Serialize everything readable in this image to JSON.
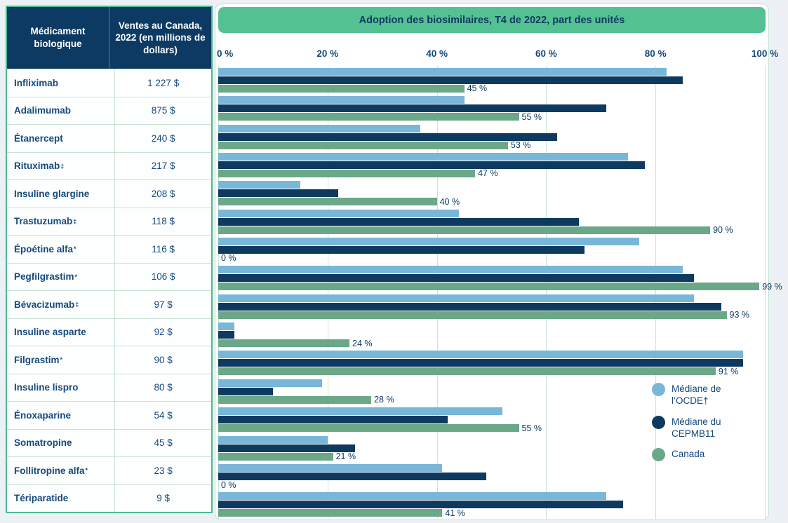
{
  "table": {
    "header": {
      "drug_col": "Médicament biologique",
      "sales_col": "Ventes au Canada, 2022 (en millions de dollars)"
    },
    "rows": [
      {
        "drug": "Infliximab",
        "marker": "",
        "sales": "1 227 $"
      },
      {
        "drug": "Adalimumab",
        "marker": "",
        "sales": "875 $"
      },
      {
        "drug": "Étanercept",
        "marker": "",
        "sales": "240 $"
      },
      {
        "drug": "Rituximab",
        "marker": "‡",
        "sales": "217 $"
      },
      {
        "drug": "Insuline glargine",
        "marker": "",
        "sales": "208 $"
      },
      {
        "drug": "Trastuzumab",
        "marker": "‡",
        "sales": "118 $"
      },
      {
        "drug": "Époétine alfa",
        "marker": "*",
        "sales": "116 $"
      },
      {
        "drug": "Pegfilgrastim",
        "marker": "*",
        "sales": "106 $"
      },
      {
        "drug": "Bévacizumab",
        "marker": "‡",
        "sales": "97 $"
      },
      {
        "drug": "Insuline asparte",
        "marker": "",
        "sales": "92 $"
      },
      {
        "drug": "Filgrastim",
        "marker": "*",
        "sales": "90 $"
      },
      {
        "drug": "Insuline lispro",
        "marker": "",
        "sales": "80 $"
      },
      {
        "drug": "Énoxaparine",
        "marker": "",
        "sales": "54 $"
      },
      {
        "drug": "Somatropine",
        "marker": "",
        "sales": "45 $"
      },
      {
        "drug": "Follitropine alfa",
        "marker": "*",
        "sales": "23 $"
      },
      {
        "drug": "Tériparatide",
        "marker": "",
        "sales": "9 $"
      }
    ]
  },
  "chart_data": {
    "type": "bar",
    "orientation": "horizontal",
    "title": "Adoption des biosimilaires, T4 de 2022, part des unités",
    "xlabel": "",
    "ylabel": "",
    "xlim": [
      0,
      100
    ],
    "grid": true,
    "legend_position": "lower right",
    "x_ticks": [
      0,
      20,
      40,
      60,
      80,
      100
    ],
    "x_tick_labels": [
      "0 %",
      "20 %",
      "40 %",
      "60 %",
      "80 %",
      "100 %"
    ],
    "categories": [
      "Infliximab",
      "Adalimumab",
      "Étanercept",
      "Rituximab",
      "Insuline glargine",
      "Trastuzumab",
      "Époétine alfa",
      "Pegfilgrastim",
      "Bévacizumab",
      "Insuline asparte",
      "Filgrastim",
      "Insuline lispro",
      "Énoxaparine",
      "Somatropine",
      "Follitropine alfa",
      "Tériparatide"
    ],
    "series": [
      {
        "name": "Médiane de l’OCDE†",
        "color": "#79b7d9",
        "values": [
          82,
          45,
          37,
          75,
          15,
          44,
          77,
          85,
          87,
          3,
          96,
          19,
          52,
          20,
          41,
          71
        ]
      },
      {
        "name": "Médiane du CEPMB11",
        "color": "#0e3a5f",
        "values": [
          85,
          71,
          62,
          78,
          22,
          66,
          67,
          87,
          92,
          3,
          96,
          10,
          42,
          25,
          49,
          74
        ]
      },
      {
        "name": "Canada",
        "color": "#6aa888",
        "values": [
          45,
          55,
          53,
          47,
          40,
          90,
          0,
          99,
          93,
          24,
          91,
          28,
          55,
          21,
          0,
          41
        ],
        "data_labels": [
          "45 %",
          "55 %",
          "53 %",
          "47 %",
          "40 %",
          "90 %",
          "0 %",
          "99 %",
          "93 %",
          "24 %",
          "91 %",
          "28 %",
          "55 %",
          "21 %",
          "0 %",
          "41 %"
        ]
      }
    ],
    "legend": [
      {
        "label": "Médiane de l’OCDE†",
        "color": "#79b7d9"
      },
      {
        "label": "Médiane du CEPMB11",
        "color": "#0e3a5f"
      },
      {
        "label": "Canada",
        "color": "#6aa888"
      }
    ]
  },
  "colors": {
    "banner_green": "#54c193",
    "bar_green": "#6aa888",
    "bar_light_blue": "#79b7d9",
    "bar_navy": "#0e3a5f",
    "table_header_navy": "#0d3a63",
    "text_navy": "#15497e",
    "grid_green": "#c8e6d4",
    "border_green": "#4cba90",
    "page_background": "#edf1f6"
  }
}
